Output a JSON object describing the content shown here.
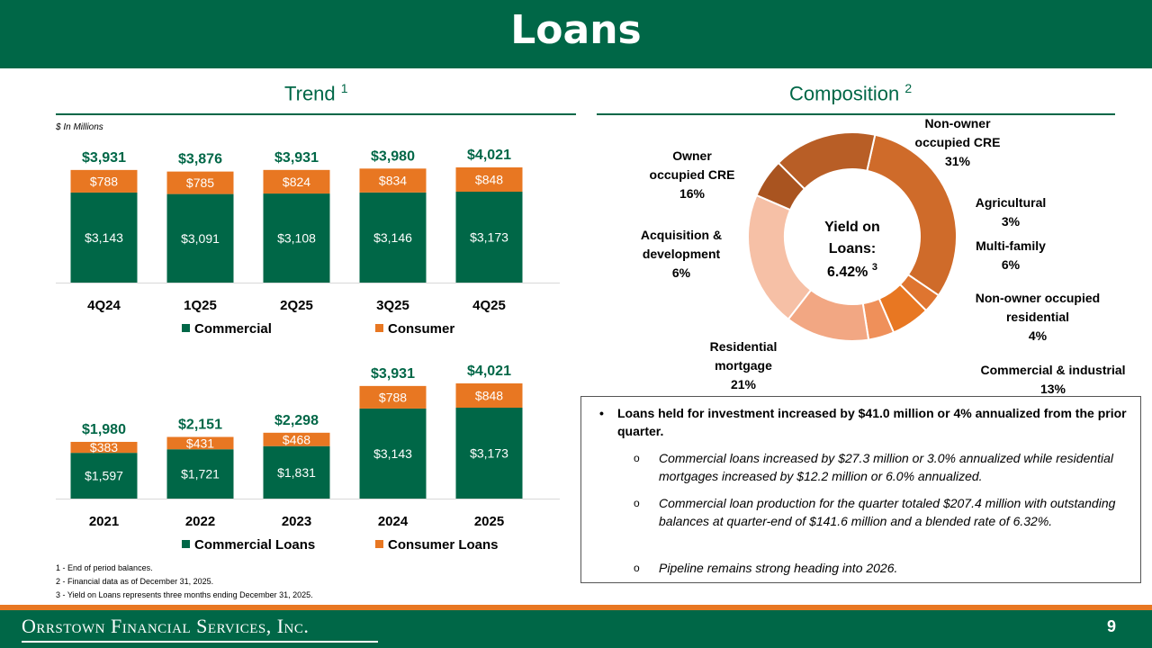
{
  "header": {
    "title": "Loans"
  },
  "trend": {
    "title": "Trend",
    "title_sup": "1",
    "unit_note": "$ In Millions"
  },
  "composition": {
    "title": "Composition",
    "title_sup": "2",
    "center_line1": "Yield on",
    "center_line2": "Loans:",
    "center_value": "6.42%",
    "center_sup": "3"
  },
  "colors": {
    "green": "#006747",
    "orange": "#e87722",
    "white": "#ffffff"
  },
  "chart_data": [
    {
      "type": "bar",
      "stacked": true,
      "categories": [
        "4Q24",
        "1Q25",
        "2Q25",
        "3Q25",
        "4Q25"
      ],
      "series": [
        {
          "name": "Commercial",
          "values": [
            3143,
            3091,
            3108,
            3146,
            3173
          ],
          "labels": [
            "$3,143",
            "$3,091",
            "$3,108",
            "$3,146",
            "$3,173"
          ],
          "color": "#006747"
        },
        {
          "name": "Consumer",
          "values": [
            788,
            785,
            824,
            834,
            848
          ],
          "labels": [
            "$788",
            "$785",
            "$824",
            "$834",
            "$848"
          ],
          "color": "#e87722"
        }
      ],
      "totals": [
        "$3,931",
        "$3,876",
        "$3,931",
        "$3,980",
        "$4,021"
      ],
      "ylim": [
        0,
        4021
      ],
      "legend": "bottom"
    },
    {
      "type": "bar",
      "stacked": true,
      "categories": [
        "2021",
        "2022",
        "2023",
        "2024",
        "2025"
      ],
      "series": [
        {
          "name": "Commercial Loans",
          "values": [
            1597,
            1721,
            1831,
            3143,
            3173
          ],
          "labels": [
            "$1,597",
            "$1,721",
            "$1,831",
            "$3,143",
            "$3,173"
          ],
          "color": "#006747"
        },
        {
          "name": "Consumer Loans",
          "values": [
            383,
            431,
            468,
            788,
            848
          ],
          "labels": [
            "$383",
            "$431",
            "$468",
            "$788",
            "$848"
          ],
          "color": "#e87722"
        }
      ],
      "totals": [
        "$1,980",
        "$2,151",
        "$2,298",
        "$3,931",
        "$4,021"
      ],
      "ylim": [
        0,
        4021
      ],
      "legend": "bottom"
    },
    {
      "type": "pie",
      "donut": true,
      "slices": [
        {
          "label_lines": [
            "Non-owner",
            "occupied CRE",
            "31%"
          ],
          "value": 31,
          "color": "#cf6b2a"
        },
        {
          "label_lines": [
            "Agricultural",
            "3%"
          ],
          "value": 3,
          "color": "#df7530"
        },
        {
          "label_lines": [
            "Multi-family",
            "6%"
          ],
          "value": 6,
          "color": "#e87722"
        },
        {
          "label_lines": [
            "Non-owner occupied",
            "residential",
            "4%"
          ],
          "value": 4,
          "color": "#ef905a"
        },
        {
          "label_lines": [
            "Commercial & industrial",
            "13%"
          ],
          "value": 13,
          "color": "#f2a783"
        },
        {
          "label_lines": [
            "Residential",
            "mortgage",
            "21%"
          ],
          "value": 21,
          "color": "#f6c0a6"
        },
        {
          "label_lines": [
            "Acquisition &",
            "development",
            "6%"
          ],
          "value": 6,
          "color": "#a95420"
        },
        {
          "label_lines": [
            "Owner",
            "occupied CRE",
            "16%"
          ],
          "value": 16,
          "color": "#b85e26"
        }
      ]
    }
  ],
  "bullets": {
    "main": "Loans held for investment increased by $41.0 million or 4% annualized from the prior quarter.",
    "subs": [
      "Commercial loans increased by $27.3 million or 3.0% annualized while residential mortgages increased by $12.2 million or 6.0% annualized.",
      "Commercial loan production for the quarter totaled $207.4 million with outstanding balances at quarter-end of $141.6 million and a blended rate of 6.32%.",
      "Pipeline remains strong heading into 2026."
    ]
  },
  "footnotes": [
    "1 - End of period balances.",
    "2 - Financial data as of December 31, 2025.",
    "3 - Yield on Loans represents three months ending December 31, 2025."
  ],
  "footer": {
    "logo": "Orrstown Financial Services, Inc.",
    "page": "9"
  }
}
